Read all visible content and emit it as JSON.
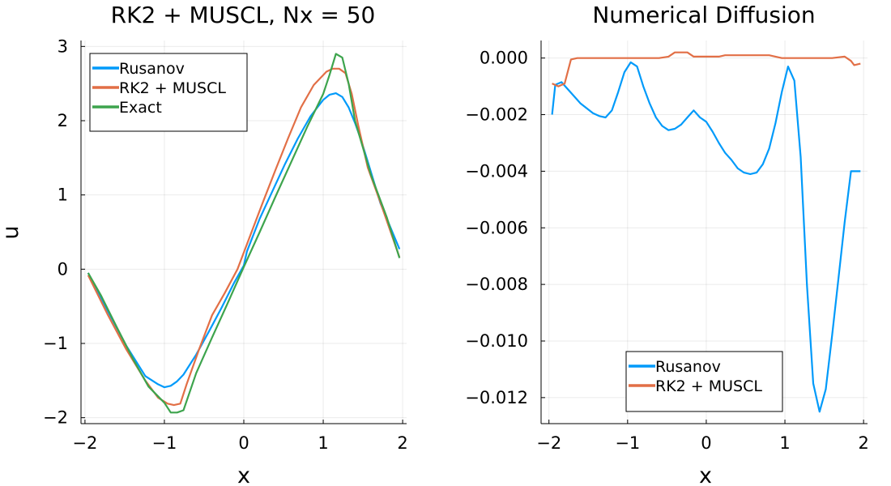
{
  "chart_data": [
    {
      "type": "line",
      "title": "RK2 + MUSCL, Nx = 50",
      "xlabel": "x",
      "ylabel": "u",
      "xlim": [
        -2.05,
        2.05
      ],
      "ylim": [
        -2.08,
        3.08
      ],
      "xticks": [
        {
          "value": -2,
          "label": "−2"
        },
        {
          "value": -1,
          "label": "−1"
        },
        {
          "value": 0,
          "label": "0"
        },
        {
          "value": 1,
          "label": "1"
        },
        {
          "value": 2,
          "label": "2"
        }
      ],
      "yticks": [
        {
          "value": -2,
          "label": "−2"
        },
        {
          "value": -1,
          "label": "−1"
        },
        {
          "value": 0,
          "label": "0"
        },
        {
          "value": 1,
          "label": "1"
        },
        {
          "value": 2,
          "label": "2"
        },
        {
          "value": 3,
          "label": "3"
        }
      ],
      "grid": true,
      "legend_position": "top-left",
      "series": [
        {
          "name": "Rusanov",
          "color": "#009AFA",
          "x": [
            -1.96,
            -1.72,
            -1.48,
            -1.24,
            -1.08,
            -1.0,
            -0.92,
            -0.84,
            -0.76,
            -0.6,
            -0.44,
            -0.28,
            -0.12,
            0.0,
            0.04,
            0.2,
            0.36,
            0.52,
            0.68,
            0.84,
            1.0,
            1.08,
            1.16,
            1.24,
            1.32,
            1.4,
            1.48,
            1.56,
            1.72,
            1.96
          ],
          "y": [
            -0.05,
            -0.55,
            -1.03,
            -1.44,
            -1.55,
            -1.59,
            -1.57,
            -1.51,
            -1.42,
            -1.15,
            -0.84,
            -0.52,
            -0.18,
            0.05,
            0.24,
            0.68,
            1.05,
            1.42,
            1.76,
            2.06,
            2.28,
            2.35,
            2.37,
            2.32,
            2.18,
            1.97,
            1.73,
            1.45,
            0.89,
            0.27
          ]
        },
        {
          "name": "RK2 + MUSCL",
          "color": "#E26F46",
          "x": [
            -1.96,
            -1.72,
            -1.48,
            -1.24,
            -1.08,
            -0.96,
            -0.88,
            -0.8,
            -0.72,
            -0.56,
            -0.4,
            -0.24,
            -0.08,
            0.08,
            0.24,
            0.4,
            0.56,
            0.72,
            0.88,
            1.04,
            1.12,
            1.2,
            1.28,
            1.36,
            1.44,
            1.56,
            1.72,
            1.96
          ],
          "y": [
            -0.08,
            -0.6,
            -1.08,
            -1.5,
            -1.73,
            -1.81,
            -1.83,
            -1.81,
            -1.55,
            -1.07,
            -0.62,
            -0.32,
            0.0,
            0.45,
            0.9,
            1.34,
            1.77,
            2.18,
            2.48,
            2.66,
            2.7,
            2.7,
            2.64,
            2.36,
            1.94,
            1.37,
            0.9,
            0.16
          ]
        },
        {
          "name": "Exact",
          "color": "#3DA44D",
          "x": [
            -1.96,
            -1.8,
            -1.6,
            -1.4,
            -1.2,
            -1.0,
            -0.92,
            -0.84,
            -0.76,
            -0.6,
            -0.4,
            -0.2,
            0.0,
            0.2,
            0.4,
            0.6,
            0.8,
            1.0,
            1.08,
            1.16,
            1.24,
            1.32,
            1.4,
            1.6,
            1.8,
            1.96
          ],
          "y": [
            -0.05,
            -0.35,
            -0.78,
            -1.2,
            -1.58,
            -1.8,
            -1.93,
            -1.93,
            -1.9,
            -1.4,
            -0.92,
            -0.45,
            0.03,
            0.5,
            0.98,
            1.45,
            1.92,
            2.36,
            2.62,
            2.9,
            2.85,
            2.5,
            2.0,
            1.27,
            0.7,
            0.15
          ]
        }
      ]
    },
    {
      "type": "line",
      "title": "Numerical Diffusion",
      "xlabel": "x",
      "ylabel": "",
      "xlim": [
        -2.1,
        2.05
      ],
      "ylim": [
        -0.01292,
        0.00062
      ],
      "xticks": [
        {
          "value": -2,
          "label": "−2"
        },
        {
          "value": -1,
          "label": "−1"
        },
        {
          "value": 0,
          "label": "0"
        },
        {
          "value": 1,
          "label": "1"
        },
        {
          "value": 2,
          "label": "2"
        }
      ],
      "yticks": [
        {
          "value": 0.0,
          "label": "0.000"
        },
        {
          "value": -0.002,
          "label": "−0.002"
        },
        {
          "value": -0.004,
          "label": "−0.004"
        },
        {
          "value": -0.006,
          "label": "−0.006"
        },
        {
          "value": -0.008,
          "label": "−0.008"
        },
        {
          "value": -0.01,
          "label": "−0.010"
        },
        {
          "value": -0.012,
          "label": "−0.012"
        }
      ],
      "grid": true,
      "legend_position": "bottom-right",
      "series": [
        {
          "name": "Rusanov",
          "color": "#009AFA",
          "x": [
            -1.96,
            -1.92,
            -1.84,
            -1.76,
            -1.6,
            -1.44,
            -1.36,
            -1.28,
            -1.2,
            -1.12,
            -1.04,
            -0.96,
            -0.88,
            -0.8,
            -0.72,
            -0.64,
            -0.56,
            -0.48,
            -0.4,
            -0.32,
            -0.24,
            -0.16,
            -0.08,
            0.0,
            0.08,
            0.16,
            0.24,
            0.32,
            0.4,
            0.48,
            0.56,
            0.64,
            0.72,
            0.8,
            0.88,
            0.96,
            1.04,
            1.12,
            1.2,
            1.28,
            1.36,
            1.44,
            1.52,
            1.6,
            1.68,
            1.76,
            1.84,
            1.96
          ],
          "y": [
            -0.002,
            -0.00095,
            -0.00085,
            -0.0011,
            -0.0016,
            -0.00195,
            -0.00205,
            -0.0021,
            -0.00185,
            -0.0012,
            -0.0005,
            -0.00015,
            -0.0003,
            -0.001,
            -0.0016,
            -0.0021,
            -0.0024,
            -0.00255,
            -0.0025,
            -0.00235,
            -0.0021,
            -0.00185,
            -0.0021,
            -0.00225,
            -0.0026,
            -0.003,
            -0.00335,
            -0.0036,
            -0.0039,
            -0.00405,
            -0.0041,
            -0.00405,
            -0.00375,
            -0.0032,
            -0.0023,
            -0.0012,
            -0.0003,
            -0.0008,
            -0.0035,
            -0.008,
            -0.0115,
            -0.0125,
            -0.0117,
            -0.0098,
            -0.0078,
            -0.0058,
            -0.004,
            -0.004
          ]
        },
        {
          "name": "RK2 + MUSCL",
          "color": "#E26F46",
          "x": [
            -1.96,
            -1.88,
            -1.8,
            -1.72,
            -1.64,
            -1.48,
            -1.32,
            -1.16,
            -1.0,
            -0.84,
            -0.6,
            -0.48,
            -0.4,
            -0.24,
            -0.16,
            -0.08,
            0.0,
            0.16,
            0.24,
            0.32,
            0.48,
            0.64,
            0.8,
            0.88,
            0.96,
            1.04,
            1.2,
            1.36,
            1.44,
            1.6,
            1.76,
            1.84,
            1.88,
            1.96
          ],
          "y": [
            -0.0009,
            -0.001,
            -0.0009,
            -5e-05,
            0.0,
            0.0,
            0.0,
            0.0,
            0.0,
            0.0,
            0.0,
            5e-05,
            0.0002,
            0.0002,
            5e-05,
            5e-05,
            5e-05,
            5e-05,
            0.0001,
            0.0001,
            0.0001,
            0.0001,
            0.0001,
            5e-05,
            0.0,
            0.0,
            0.0,
            0.0,
            0.0,
            0.0,
            5e-05,
            -0.0001,
            -0.00025,
            -0.0002
          ]
        }
      ]
    }
  ]
}
